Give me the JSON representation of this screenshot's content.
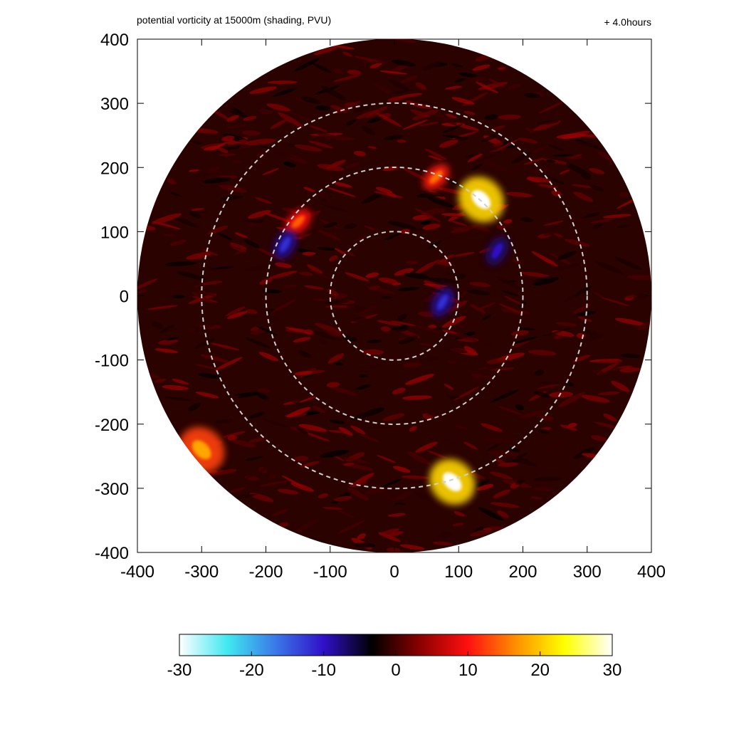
{
  "chart_data": {
    "type": "heatmap",
    "title": "potential vorticity at 15000m (shading, PVU)",
    "time_label": "+ 4.0hours",
    "xlabel": "",
    "ylabel": "",
    "xlim": [
      -400,
      400
    ],
    "ylim": [
      -400,
      400
    ],
    "x_ticks": [
      -400,
      -300,
      -200,
      -100,
      0,
      100,
      200,
      300,
      400
    ],
    "y_ticks": [
      -400,
      -300,
      -200,
      -100,
      0,
      100,
      200,
      300,
      400
    ],
    "x_tick_labels": [
      "-400",
      "-300",
      "-200",
      "-100",
      "0",
      "100",
      "200",
      "300",
      "400"
    ],
    "y_tick_labels": [
      "-400",
      "-300",
      "-200",
      "-100",
      "0",
      "100",
      "200",
      "300",
      "400"
    ],
    "domain_radius": 400,
    "range_rings": [
      100,
      200,
      300
    ],
    "colorbar": {
      "min": -30,
      "max": 30,
      "ticks": [
        -30,
        -20,
        -10,
        0,
        10,
        20,
        30
      ],
      "tick_labels": [
        "-30",
        "-20",
        "-10",
        "0",
        "10",
        "20",
        "30"
      ],
      "colors": [
        "#ffffff",
        "#40e8f0",
        "#3a78e8",
        "#3010c8",
        "#000000",
        "#8a0000",
        "#ff1010",
        "#ff9000",
        "#ffff00",
        "#ffffff"
      ]
    },
    "features": [
      {
        "name": "strong positive PV cluster",
        "x": 135,
        "y": 150,
        "value": 30
      },
      {
        "name": "positive PV band",
        "x": 65,
        "y": 185,
        "value": 15
      },
      {
        "name": "negative PV band",
        "x": 75,
        "y": -10,
        "value": -12
      },
      {
        "name": "negative PV band",
        "x": 160,
        "y": 70,
        "value": -10
      },
      {
        "name": "positive PV patch",
        "x": -300,
        "y": -240,
        "value": 18
      },
      {
        "name": "positive PV patch",
        "x": -150,
        "y": 115,
        "value": 14
      },
      {
        "name": "negative PV patch",
        "x": -170,
        "y": 80,
        "value": -12
      },
      {
        "name": "extreme PV spot",
        "x": 90,
        "y": -290,
        "value": 30
      }
    ]
  }
}
